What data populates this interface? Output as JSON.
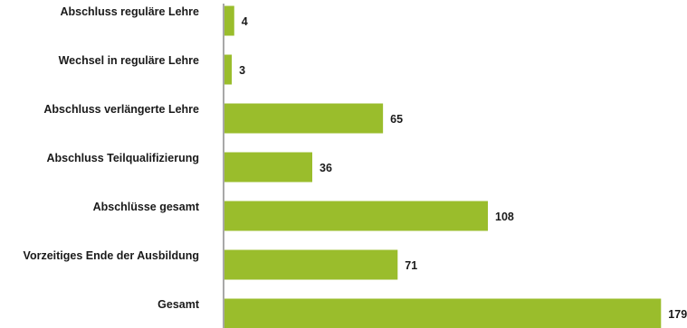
{
  "chart_data": {
    "type": "bar",
    "orientation": "horizontal",
    "categories": [
      "Abschluss reguläre Lehre",
      "Wechsel in reguläre Lehre",
      "Abschluss verlängerte Lehre",
      "Abschluss Teilqualifizierung",
      "Abschlüsse gesamt",
      "Vorzeitiges Ende der Ausbildung",
      "Gesamt"
    ],
    "values": [
      4,
      3,
      65,
      36,
      108,
      71,
      179
    ],
    "value_labels": [
      "4",
      "3",
      "65",
      "36",
      "108",
      "71",
      "179"
    ],
    "title": "",
    "xlabel": "",
    "ylabel": "",
    "xlim": [
      0,
      180
    ],
    "grid": false,
    "legend": "none",
    "colors": {
      "bar": "#9abd2c",
      "axis": "#8c8c8c",
      "text": "#1a1a1a"
    }
  }
}
